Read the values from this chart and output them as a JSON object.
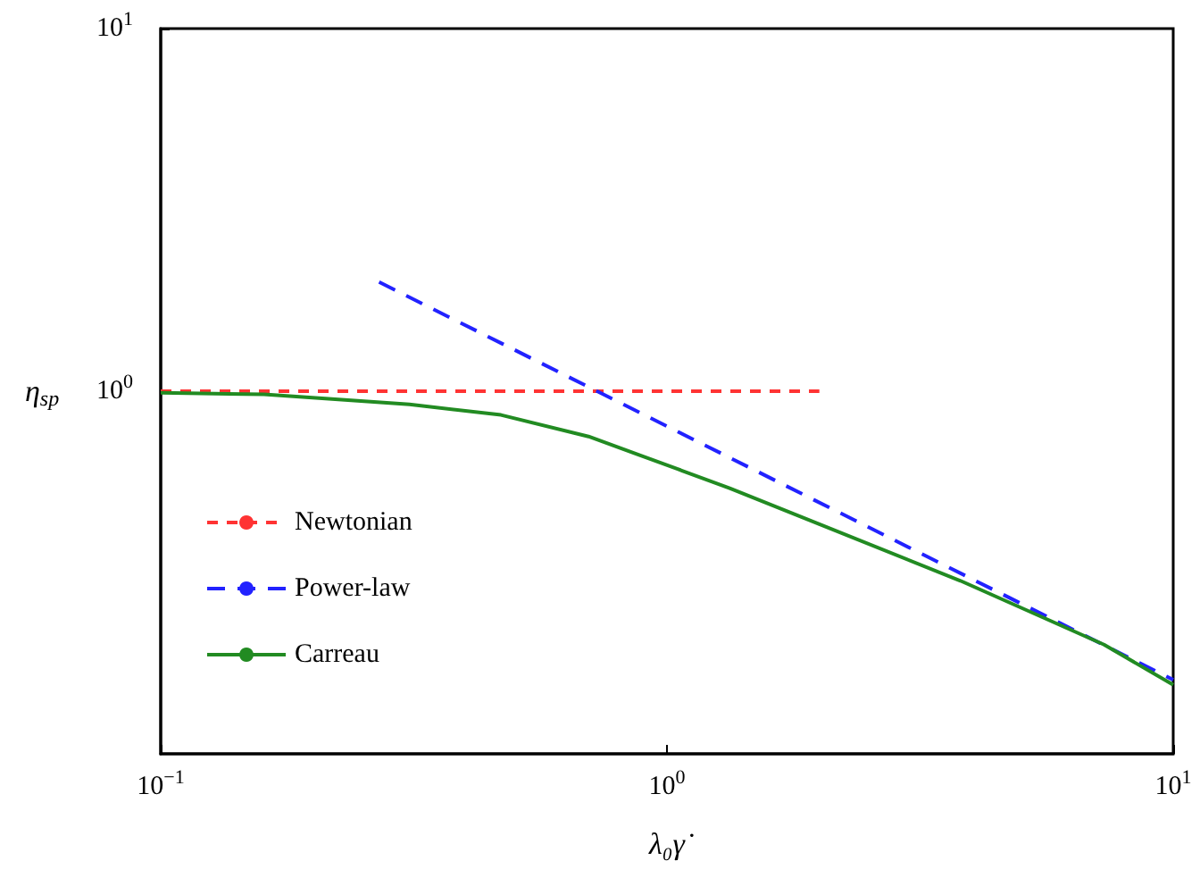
{
  "chart_data": {
    "type": "line",
    "xlabel": "λ₀γ̇",
    "ylabel": "η$_{sp}$",
    "log": "xy",
    "grid": false,
    "legend": "bottom left",
    "marker": "none",
    "xlim": [
      0.1,
      10
    ],
    "ylim": [
      0.1,
      10
    ],
    "xticks": [
      {
        "value": 0.1,
        "label": "10$^{−1}$"
      },
      {
        "value": 1,
        "label": "10$^{0}$"
      },
      {
        "value": 10,
        "label": "10$^{1}$"
      }
    ],
    "yticks": [
      {
        "value": 1,
        "label": "10$^{0}$"
      },
      {
        "value": 10,
        "label": "10$^{1}$"
      }
    ],
    "series": [
      {
        "name": "Newtonian",
        "color": "#ff3333",
        "line_style": "dashed",
        "x": [
          0.1,
          2
        ],
        "values": [
          1.0,
          1.0
        ]
      },
      {
        "name": "Power-law",
        "color": "#2222ff",
        "line_style": "dashed",
        "x": [
          0.27,
          10
        ],
        "values": [
          2.0,
          0.16
        ]
      },
      {
        "name": "Carreau",
        "color": "#228b22",
        "line_style": "solid",
        "x": [
          0.1,
          0.16,
          0.31,
          0.47,
          0.7,
          1.05,
          1.33,
          2,
          3.8,
          7.3,
          10
        ],
        "values": [
          0.99,
          0.98,
          0.92,
          0.86,
          0.75,
          0.61,
          0.54,
          0.43,
          0.3,
          0.2,
          0.155
        ]
      }
    ]
  }
}
